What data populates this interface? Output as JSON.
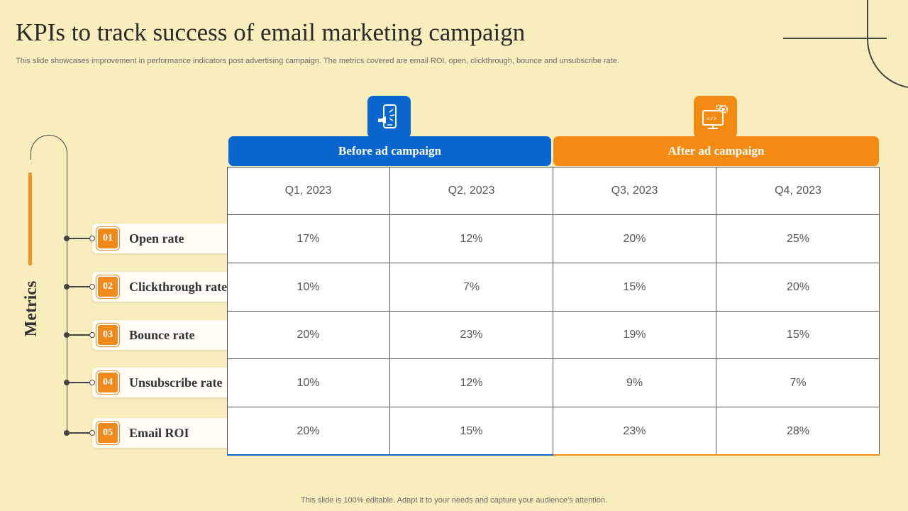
{
  "slide": {
    "title": "KPIs to track success of email marketing campaign",
    "subtitle": "This slide showcases improvement in performance indicators post advertising campaign. The metrics covered are email ROI, open, clickthrough, bounce and unsubscribe rate.",
    "footer": "This slide is 100% editable. Adapt it to your needs and capture your audience’s attention."
  },
  "metrics_label": "Metrics",
  "groups": {
    "before": {
      "label": "Before ad campaign",
      "icon": "mobile-megaphone-icon",
      "color": "#0a66cf"
    },
    "after": {
      "label": "After ad campaign",
      "icon": "monitor-gear-icon",
      "color": "#f38b13"
    }
  },
  "table": {
    "quarters": [
      "Q1, 2023",
      "Q2, 2023",
      "Q3, 2023",
      "Q4, 2023"
    ],
    "rows": [
      {
        "num": "01",
        "metric": "Open rate",
        "values": [
          "17%",
          "12%",
          "20%",
          "25%"
        ]
      },
      {
        "num": "02",
        "metric": "Clickthrough rate",
        "values": [
          "10%",
          "7%",
          "15%",
          "20%"
        ]
      },
      {
        "num": "03",
        "metric": "Bounce rate",
        "values": [
          "20%",
          "23%",
          "19%",
          "15%"
        ]
      },
      {
        "num": "04",
        "metric": "Unsubscribe rate",
        "values": [
          "10%",
          "12%",
          "9%",
          "7%"
        ]
      },
      {
        "num": "05",
        "metric": "Email ROI",
        "values": [
          "20%",
          "15%",
          "23%",
          "28%"
        ]
      }
    ]
  }
}
